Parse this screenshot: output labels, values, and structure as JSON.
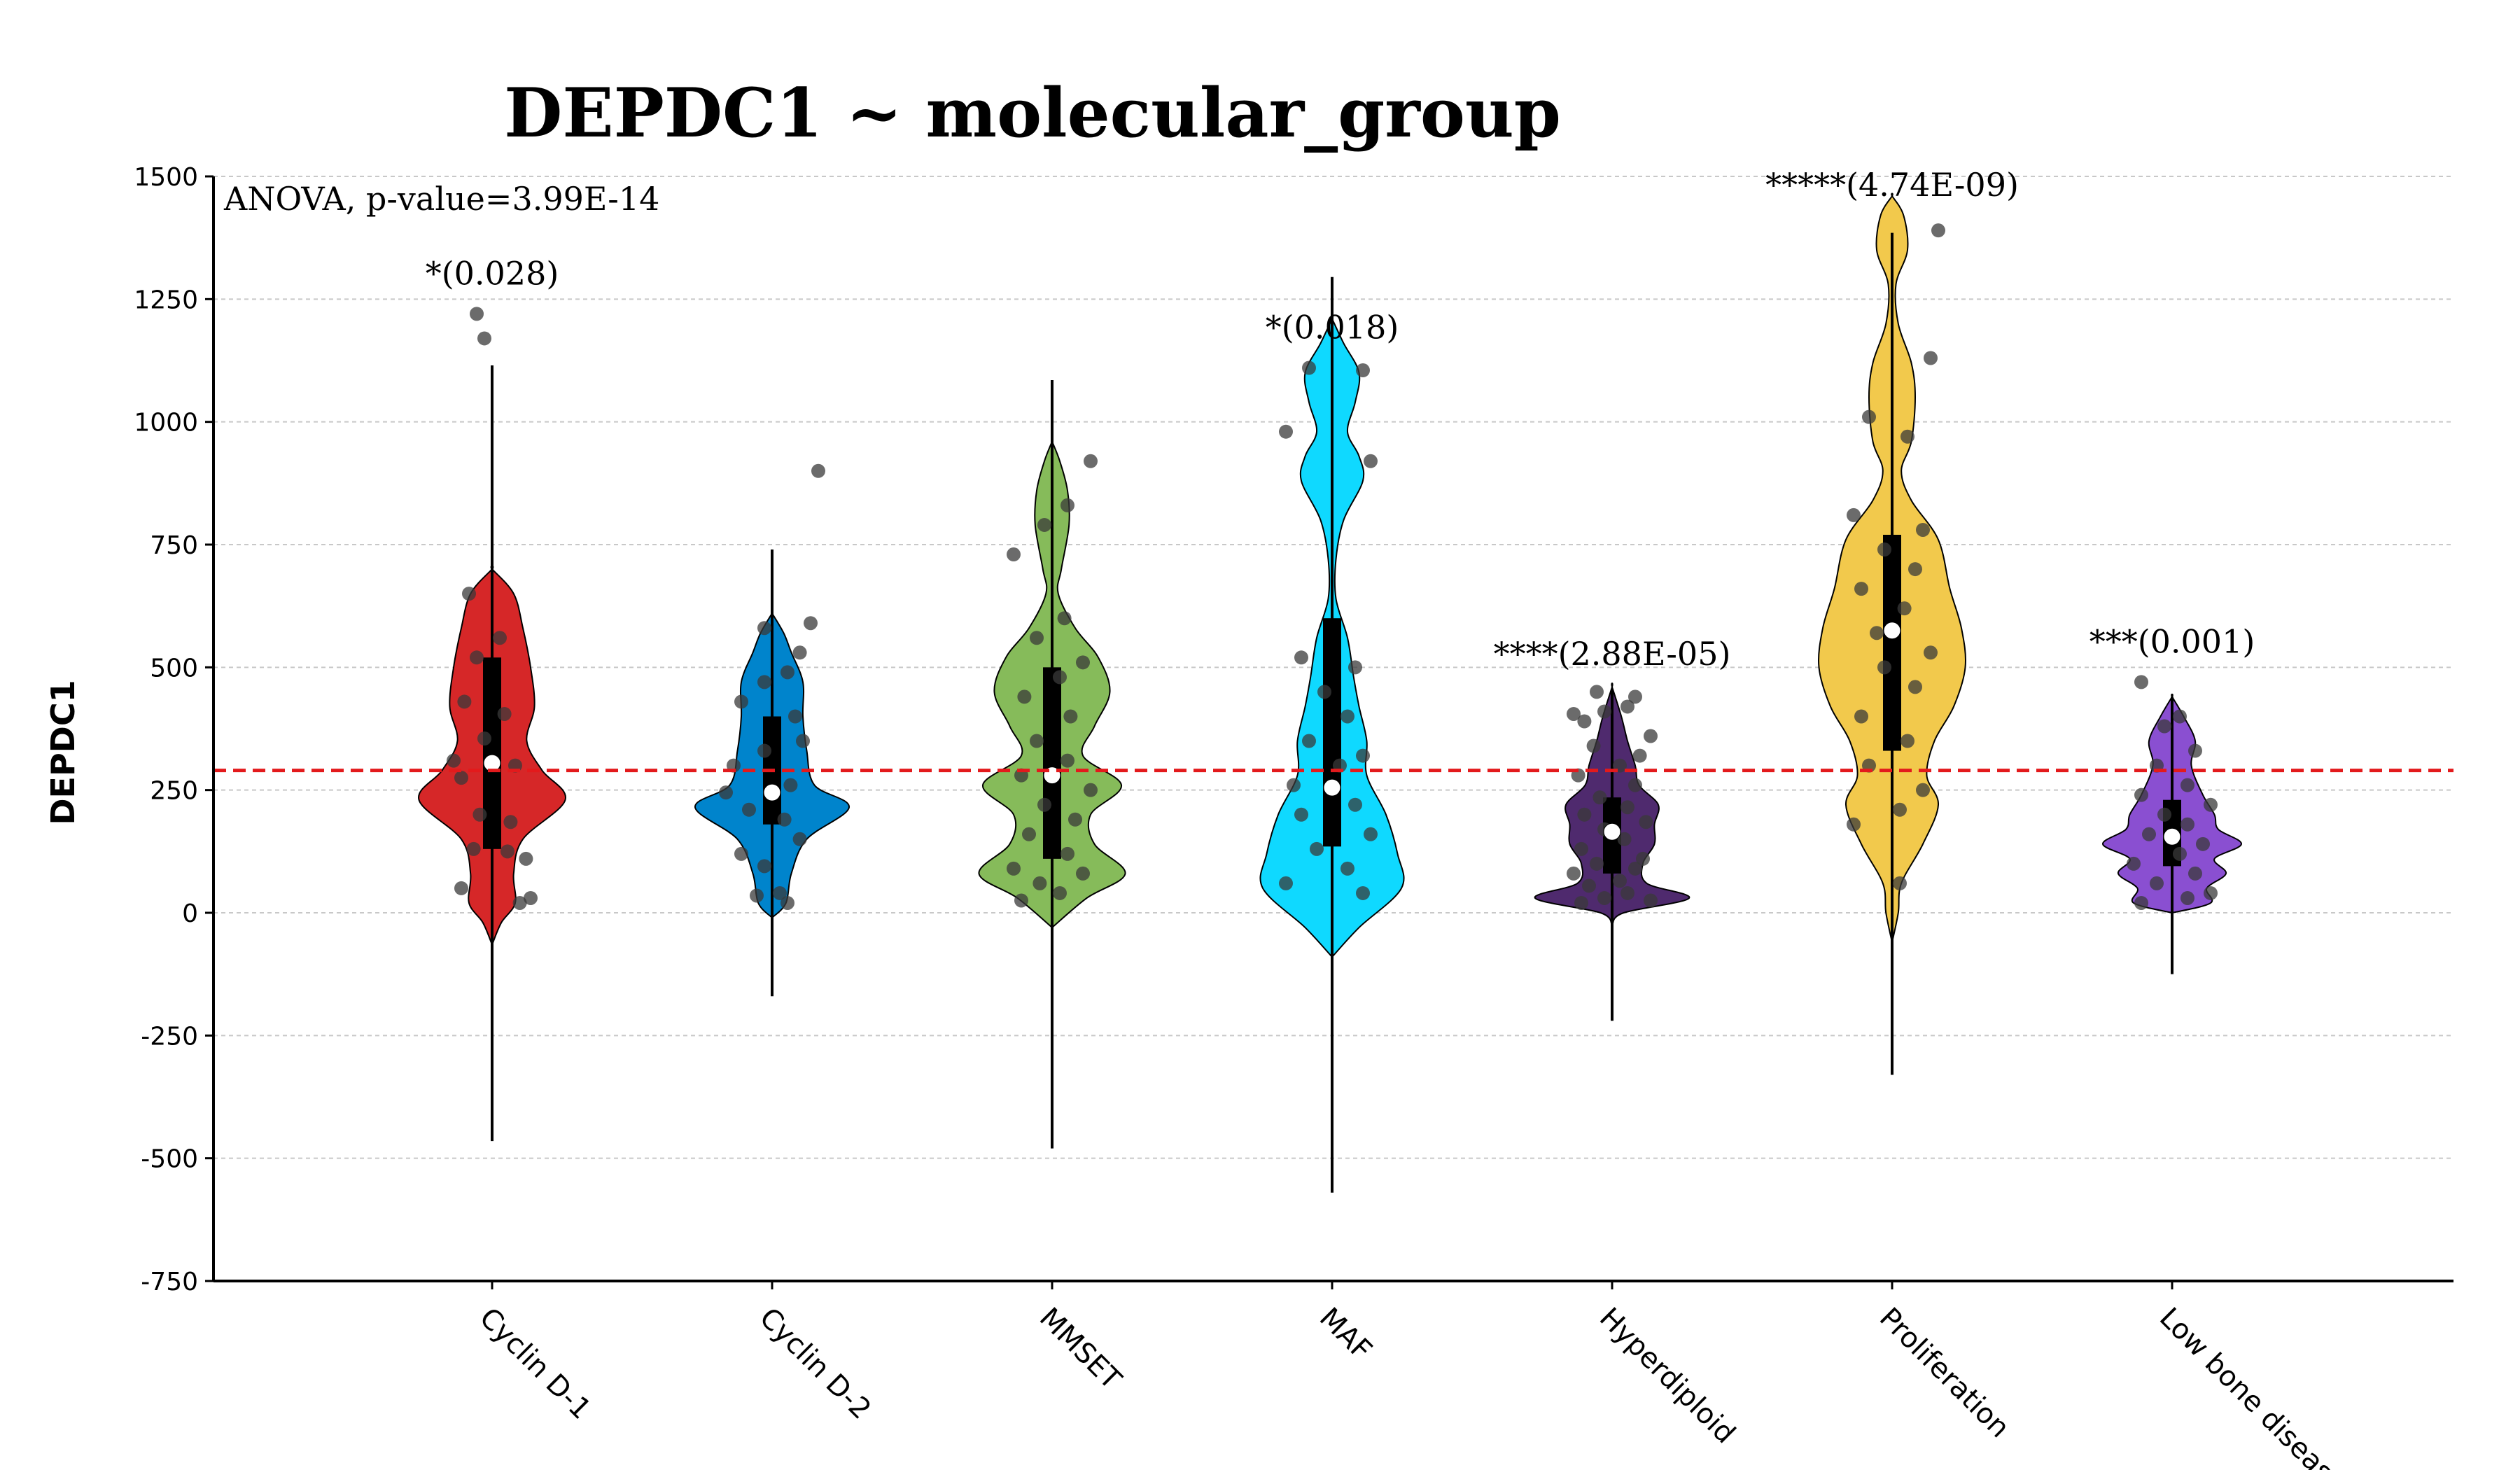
{
  "chart_data": {
    "type": "violin",
    "title": "DEPDC1 ~ molecular_group",
    "xlabel": "",
    "ylabel": "DEPDC1",
    "ylim": [
      -750,
      1500
    ],
    "yticks": [
      "1500",
      "1250",
      "1000",
      "750",
      "500",
      "250",
      "0",
      "-250",
      "-500",
      "-750"
    ],
    "ytick_values": [
      1500,
      1250,
      1000,
      750,
      500,
      250,
      0,
      -250,
      -500,
      -750
    ],
    "grid": "horizontal dashed",
    "test_annotation": "ANOVA, p-value=3.99E-14",
    "reference_line": {
      "value": 290,
      "color": "#e31a1c",
      "style": "dashed"
    },
    "categories": [
      "Cyclin D-1",
      "Cyclin D-2",
      "MMSET",
      "MAF",
      "Hyperdiploid",
      "Proliferation",
      "Low bone disease"
    ],
    "groups": [
      {
        "name": "Cyclin D-1",
        "color": "#d62728",
        "median": 305,
        "q1": 130,
        "q3": 520,
        "whisker_low": -465,
        "whisker_high": 1115,
        "significance": "*(0.028)",
        "annotation_y": 1280,
        "violin_profile": [
          [
            -65,
            0
          ],
          [
            -20,
            0.12
          ],
          [
            20,
            0.3
          ],
          [
            80,
            0.28
          ],
          [
            150,
            0.4
          ],
          [
            230,
            0.95
          ],
          [
            290,
            0.65
          ],
          [
            350,
            0.45
          ],
          [
            420,
            0.55
          ],
          [
            500,
            0.5
          ],
          [
            580,
            0.4
          ],
          [
            650,
            0.28
          ],
          [
            700,
            0
          ]
        ],
        "points": [
          [
            -20,
            50
          ],
          [
            18,
            20
          ],
          [
            25,
            30
          ],
          [
            -12,
            130
          ],
          [
            10,
            125
          ],
          [
            22,
            110
          ],
          [
            -8,
            200
          ],
          [
            12,
            185
          ],
          [
            -20,
            275
          ],
          [
            15,
            300
          ],
          [
            -25,
            310
          ],
          [
            -5,
            355
          ],
          [
            8,
            405
          ],
          [
            -18,
            430
          ],
          [
            -10,
            520
          ],
          [
            5,
            560
          ],
          [
            -15,
            650
          ],
          [
            -5,
            1170
          ],
          [
            -10,
            1220
          ]
        ]
      },
      {
        "name": "Cyclin D-2",
        "color": "#0084cc",
        "median": 245,
        "q1": 180,
        "q3": 400,
        "whisker_low": -170,
        "whisker_high": 740,
        "significance": "",
        "annotation_y": null,
        "violin_profile": [
          [
            -10,
            0
          ],
          [
            20,
            0.18
          ],
          [
            80,
            0.25
          ],
          [
            150,
            0.45
          ],
          [
            215,
            1.0
          ],
          [
            260,
            0.55
          ],
          [
            330,
            0.45
          ],
          [
            400,
            0.4
          ],
          [
            470,
            0.4
          ],
          [
            530,
            0.25
          ],
          [
            570,
            0.15
          ],
          [
            610,
            0
          ]
        ],
        "points": [
          [
            -10,
            35
          ],
          [
            5,
            40
          ],
          [
            10,
            20
          ],
          [
            -20,
            120
          ],
          [
            -5,
            95
          ],
          [
            18,
            150
          ],
          [
            -15,
            210
          ],
          [
            8,
            190
          ],
          [
            -30,
            245
          ],
          [
            12,
            260
          ],
          [
            -25,
            300
          ],
          [
            -5,
            330
          ],
          [
            20,
            350
          ],
          [
            15,
            400
          ],
          [
            -20,
            430
          ],
          [
            -5,
            470
          ],
          [
            10,
            490
          ],
          [
            18,
            530
          ],
          [
            25,
            590
          ],
          [
            -5,
            580
          ],
          [
            30,
            900
          ]
        ]
      },
      {
        "name": "MMSET",
        "color": "#86bb5a",
        "median": 280,
        "q1": 110,
        "q3": 500,
        "whisker_low": -480,
        "whisker_high": 1085,
        "significance": "",
        "annotation_y": null,
        "violin_profile": [
          [
            -30,
            0
          ],
          [
            30,
            0.45
          ],
          [
            80,
            0.95
          ],
          [
            140,
            0.55
          ],
          [
            200,
            0.5
          ],
          [
            260,
            0.9
          ],
          [
            320,
            0.4
          ],
          [
            380,
            0.55
          ],
          [
            450,
            0.75
          ],
          [
            520,
            0.6
          ],
          [
            580,
            0.3
          ],
          [
            650,
            0.08
          ],
          [
            700,
            0.12
          ],
          [
            790,
            0.22
          ],
          [
            860,
            0.2
          ],
          [
            920,
            0.1
          ],
          [
            960,
            0
          ]
        ],
        "points": [
          [
            -20,
            25
          ],
          [
            5,
            40
          ],
          [
            -8,
            60
          ],
          [
            20,
            80
          ],
          [
            -25,
            90
          ],
          [
            10,
            120
          ],
          [
            -15,
            160
          ],
          [
            15,
            190
          ],
          [
            -5,
            220
          ],
          [
            25,
            250
          ],
          [
            -20,
            280
          ],
          [
            10,
            310
          ],
          [
            -10,
            350
          ],
          [
            12,
            400
          ],
          [
            -18,
            440
          ],
          [
            5,
            480
          ],
          [
            20,
            510
          ],
          [
            -10,
            560
          ],
          [
            8,
            600
          ],
          [
            -25,
            730
          ],
          [
            10,
            830
          ],
          [
            -5,
            790
          ],
          [
            25,
            920
          ]
        ]
      },
      {
        "name": "MAF",
        "color": "#0fd9ff",
        "median": 255,
        "q1": 135,
        "q3": 600,
        "whisker_low": -570,
        "whisker_high": 1295,
        "significance": "*(0.018)",
        "annotation_y": 1170,
        "violin_profile": [
          [
            -90,
            0
          ],
          [
            -30,
            0.35
          ],
          [
            50,
            0.9
          ],
          [
            120,
            0.85
          ],
          [
            200,
            0.7
          ],
          [
            280,
            0.45
          ],
          [
            350,
            0.45
          ],
          [
            420,
            0.35
          ],
          [
            480,
            0.28
          ],
          [
            560,
            0.2
          ],
          [
            640,
            0.05
          ],
          [
            720,
            0.05
          ],
          [
            800,
            0.15
          ],
          [
            880,
            0.4
          ],
          [
            930,
            0.35
          ],
          [
            980,
            0.2
          ],
          [
            1040,
            0.3
          ],
          [
            1100,
            0.35
          ],
          [
            1160,
            0.15
          ],
          [
            1210,
            0
          ]
        ],
        "points": [
          [
            -30,
            60
          ],
          [
            20,
            40
          ],
          [
            10,
            90
          ],
          [
            -10,
            130
          ],
          [
            25,
            160
          ],
          [
            -20,
            200
          ],
          [
            15,
            220
          ],
          [
            -25,
            260
          ],
          [
            5,
            300
          ],
          [
            20,
            320
          ],
          [
            -15,
            350
          ],
          [
            10,
            400
          ],
          [
            -5,
            450
          ],
          [
            15,
            500
          ],
          [
            -20,
            520
          ],
          [
            25,
            920
          ],
          [
            -30,
            980
          ],
          [
            -15,
            1110
          ],
          [
            20,
            1105
          ]
        ]
      },
      {
        "name": "Hyperdiploid",
        "color": "#4f2a6e",
        "median": 165,
        "q1": 80,
        "q3": 235,
        "whisker_low": -220,
        "whisker_high": 455,
        "significance": "****(2.88E-05)",
        "annotation_y": 505,
        "violin_profile": [
          [
            -25,
            0
          ],
          [
            0,
            0.15
          ],
          [
            30,
            1.0
          ],
          [
            60,
            0.45
          ],
          [
            100,
            0.4
          ],
          [
            140,
            0.55
          ],
          [
            180,
            0.55
          ],
          [
            220,
            0.6
          ],
          [
            260,
            0.35
          ],
          [
            300,
            0.3
          ],
          [
            350,
            0.2
          ],
          [
            400,
            0.12
          ],
          [
            460,
            0
          ]
        ],
        "points": [
          [
            -20,
            20
          ],
          [
            -5,
            30
          ],
          [
            10,
            40
          ],
          [
            25,
            25
          ],
          [
            -15,
            55
          ],
          [
            5,
            65
          ],
          [
            -25,
            80
          ],
          [
            15,
            90
          ],
          [
            -10,
            100
          ],
          [
            20,
            110
          ],
          [
            -20,
            130
          ],
          [
            8,
            150
          ],
          [
            -5,
            170
          ],
          [
            22,
            185
          ],
          [
            -18,
            200
          ],
          [
            10,
            215
          ],
          [
            -8,
            235
          ],
          [
            15,
            260
          ],
          [
            -22,
            280
          ],
          [
            5,
            300
          ],
          [
            18,
            320
          ],
          [
            -12,
            340
          ],
          [
            25,
            360
          ],
          [
            -18,
            390
          ],
          [
            -5,
            410
          ],
          [
            10,
            420
          ],
          [
            -25,
            405
          ],
          [
            15,
            440
          ],
          [
            -10,
            450
          ]
        ]
      },
      {
        "name": "Proliferation",
        "color": "#f2c94c",
        "median": 575,
        "q1": 330,
        "q3": 770,
        "whisker_low": -330,
        "whisker_high": 1385,
        "significance": "*****(4.74E-09)",
        "annotation_y": 1460,
        "violin_profile": [
          [
            -60,
            0
          ],
          [
            0,
            0.08
          ],
          [
            60,
            0.12
          ],
          [
            140,
            0.4
          ],
          [
            220,
            0.6
          ],
          [
            280,
            0.45
          ],
          [
            350,
            0.55
          ],
          [
            420,
            0.8
          ],
          [
            500,
            0.95
          ],
          [
            580,
            0.9
          ],
          [
            660,
            0.75
          ],
          [
            760,
            0.6
          ],
          [
            840,
            0.25
          ],
          [
            900,
            0.12
          ],
          [
            960,
            0.25
          ],
          [
            1050,
            0.3
          ],
          [
            1120,
            0.25
          ],
          [
            1200,
            0.08
          ],
          [
            1280,
            0.05
          ],
          [
            1350,
            0.2
          ],
          [
            1420,
            0.15
          ],
          [
            1460,
            0
          ]
        ],
        "points": [
          [
            -25,
            180
          ],
          [
            5,
            210
          ],
          [
            20,
            250
          ],
          [
            -15,
            300
          ],
          [
            10,
            350
          ],
          [
            -20,
            400
          ],
          [
            15,
            460
          ],
          [
            -5,
            500
          ],
          [
            25,
            530
          ],
          [
            -10,
            570
          ],
          [
            8,
            620
          ],
          [
            -20,
            660
          ],
          [
            15,
            700
          ],
          [
            -5,
            740
          ],
          [
            20,
            780
          ],
          [
            -25,
            810
          ],
          [
            10,
            970
          ],
          [
            -15,
            1010
          ],
          [
            25,
            1130
          ],
          [
            5,
            60
          ],
          [
            30,
            1390
          ]
        ]
      },
      {
        "name": "Low bone disease",
        "color": "#8a4fd1",
        "median": 155,
        "q1": 95,
        "q3": 230,
        "whisker_low": -125,
        "whisker_high": 440,
        "significance": "***(0.001)",
        "annotation_y": 530,
        "violin_profile": [
          [
            0,
            0
          ],
          [
            20,
            0.5
          ],
          [
            50,
            0.45
          ],
          [
            80,
            0.7
          ],
          [
            110,
            0.55
          ],
          [
            140,
            0.9
          ],
          [
            170,
            0.6
          ],
          [
            200,
            0.55
          ],
          [
            240,
            0.4
          ],
          [
            300,
            0.25
          ],
          [
            350,
            0.3
          ],
          [
            400,
            0.15
          ],
          [
            440,
            0
          ]
        ],
        "points": [
          [
            -20,
            20
          ],
          [
            10,
            30
          ],
          [
            25,
            40
          ],
          [
            -10,
            60
          ],
          [
            15,
            80
          ],
          [
            -25,
            100
          ],
          [
            5,
            120
          ],
          [
            20,
            140
          ],
          [
            -15,
            160
          ],
          [
            10,
            180
          ],
          [
            -5,
            200
          ],
          [
            25,
            220
          ],
          [
            -20,
            240
          ],
          [
            10,
            260
          ],
          [
            -10,
            300
          ],
          [
            15,
            330
          ],
          [
            -5,
            380
          ],
          [
            5,
            400
          ],
          [
            -20,
            470
          ]
        ]
      }
    ]
  }
}
